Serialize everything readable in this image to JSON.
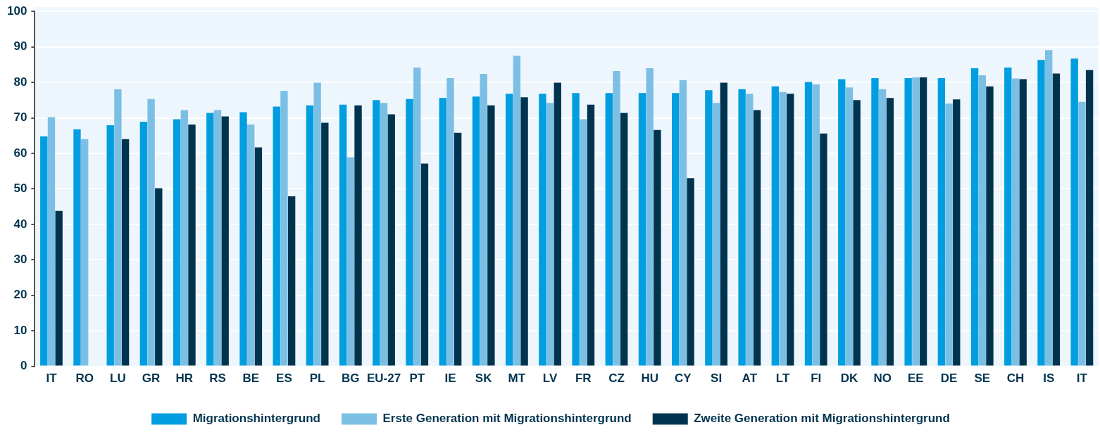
{
  "chart_data": {
    "type": "bar",
    "categories": [
      "IT",
      "RO",
      "LU",
      "GR",
      "HR",
      "RS",
      "BE",
      "ES",
      "PL",
      "BG",
      "EU-27",
      "PT",
      "IE",
      "SK",
      "MT",
      "LV",
      "FR",
      "CZ",
      "HU",
      "CY",
      "SI",
      "AT",
      "LT",
      "FI",
      "DK",
      "NO",
      "EE",
      "DE",
      "SE",
      "CH",
      "IS",
      "IT"
    ],
    "series": [
      {
        "name": "Migrationshintergrund",
        "color": "#009ee0",
        "values": [
          64.8,
          66.8,
          67.9,
          68.9,
          69.6,
          71.4,
          71.6,
          73.2,
          73.5,
          73.7,
          75.0,
          75.3,
          75.6,
          76.0,
          76.8,
          76.8,
          77.0,
          77.0,
          77.0,
          77.0,
          77.8,
          78.1,
          78.9,
          80.1,
          80.9,
          81.2,
          81.2,
          81.2,
          84.0,
          84.2,
          86.3,
          86.7
        ]
      },
      {
        "name": "Erste Generation mit Migrationshintergrund",
        "color": "#7bc0e4",
        "values": [
          70.2,
          64.0,
          78.1,
          75.3,
          72.2,
          72.2,
          68.1,
          77.6,
          79.9,
          58.9,
          74.2,
          84.2,
          81.2,
          82.4,
          87.5,
          74.2,
          69.6,
          83.2,
          84.0,
          80.6,
          74.2,
          76.8,
          77.3,
          79.4,
          78.6,
          78.1,
          81.4,
          74.0,
          82.0,
          81.1,
          89.1,
          74.5
        ]
      },
      {
        "name": "Zweite Generation mit Migrationshintergrund",
        "color": "#00344e",
        "values": [
          43.8,
          null,
          64.0,
          50.2,
          68.1,
          70.4,
          61.7,
          47.9,
          68.6,
          73.5,
          71.0,
          57.1,
          65.8,
          73.5,
          75.8,
          79.9,
          73.7,
          71.4,
          66.6,
          53.0,
          79.9,
          72.2,
          76.8,
          65.6,
          75.0,
          75.6,
          81.4,
          75.2,
          78.9,
          80.9,
          82.5,
          83.5
        ]
      }
    ],
    "ylim": [
      0,
      100
    ],
    "yticks": [
      0,
      10,
      20,
      30,
      40,
      50,
      60,
      70,
      80,
      90,
      100
    ],
    "grid": "y",
    "legend": "bottom"
  }
}
